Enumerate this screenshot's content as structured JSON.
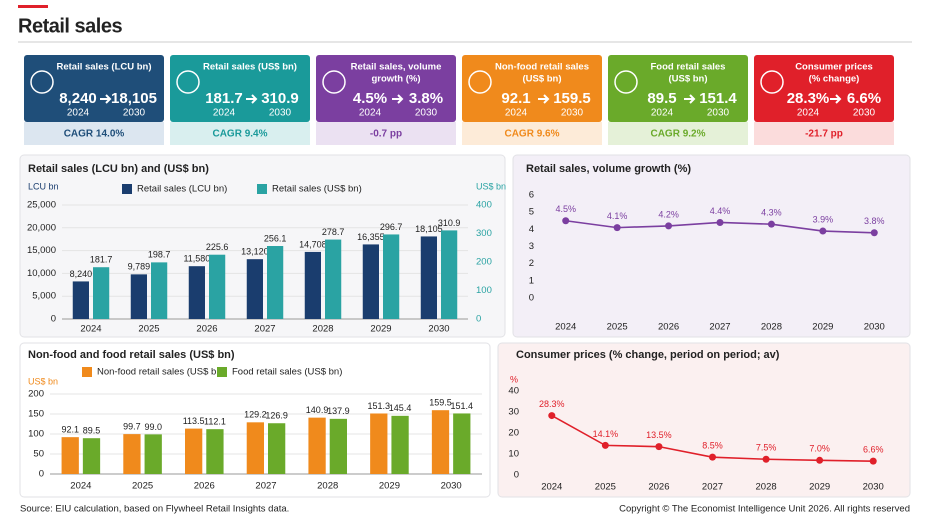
{
  "header": {
    "title": "Retail sales"
  },
  "cards": [
    {
      "title": [
        "Retail sales (LCU bn)"
      ],
      "start": "8,240",
      "end": "18,105",
      "start_year": "2024",
      "end_year": "2030",
      "footer": "CAGR 14.0%",
      "color": "#1f4e79",
      "band": "#dce6f0"
    },
    {
      "title": [
        "Retail sales (US$ bn)"
      ],
      "start": "181.7",
      "end": "310.9",
      "start_year": "2024",
      "end_year": "2030",
      "footer": "CAGR 9.4%",
      "color": "#1a9a9a",
      "band": "#d9efef"
    },
    {
      "title": [
        "Retail sales, volume",
        "growth (%)"
      ],
      "start": "4.5%",
      "end": "3.8%",
      "start_year": "2024",
      "end_year": "2030",
      "footer": "-0.7 pp",
      "color": "#7b3fa0",
      "band": "#ebe1f2"
    },
    {
      "title": [
        "Non-food retail sales",
        "(US$ bn)"
      ],
      "start": "92.1",
      "end": "159.5",
      "start_year": "2024",
      "end_year": "2030",
      "footer": "CAGR 9.6%",
      "color": "#f08a1c",
      "band": "#fdebd8"
    },
    {
      "title": [
        "Food retail sales",
        "(US$ bn)"
      ],
      "start": "89.5",
      "end": "151.4",
      "start_year": "2024",
      "end_year": "2030",
      "footer": "CAGR 9.2%",
      "color": "#6aaa2a",
      "band": "#e5f1d8"
    },
    {
      "title": [
        "Consumer prices",
        "(% change)"
      ],
      "start": "28.3%",
      "end": "6.6%",
      "start_year": "2024",
      "end_year": "2030",
      "footer": "-21.7 pp",
      "color": "#e0202a",
      "band": "#fbdcdc"
    }
  ],
  "chart_data": [
    {
      "type": "bar",
      "title": "Retail sales (LCU bn) and (US$ bn)",
      "y_label": "LCU bn",
      "y2_label": "US$ bn",
      "categories": [
        "2024",
        "2025",
        "2026",
        "2027",
        "2028",
        "2029",
        "2030"
      ],
      "series": [
        {
          "name": "Retail sales (LCU bn)",
          "color": "#1a3d6e",
          "values": [
            8240,
            9789,
            11580,
            13120,
            14708,
            16355,
            18105
          ],
          "value_labels": [
            "8,240",
            "9,789",
            "11,580",
            "13,120",
            "14,708",
            "16,355",
            "18,105"
          ]
        },
        {
          "name": "Retail sales (US$ bn)",
          "color": "#2aa3a3",
          "axis": "y2",
          "values": [
            181.7,
            198.7,
            225.6,
            256.1,
            278.7,
            296.7,
            310.9
          ]
        }
      ],
      "ylim": [
        0,
        25000
      ],
      "yticks": [
        0,
        {
          "value": 5000,
          "label": "5,000"
        },
        {
          "value": 10000,
          "label": "10,000"
        },
        {
          "value": 15000,
          "label": "15,000"
        },
        {
          "value": 20000,
          "label": "20,000"
        },
        {
          "value": 25000,
          "label": "25,000"
        }
      ],
      "y2lim": [
        0,
        400
      ],
      "y2ticks": [
        0,
        100,
        200,
        300,
        400
      ],
      "grid": true,
      "legend": "top"
    },
    {
      "type": "line",
      "title": "Retail sales, volume growth (%)",
      "color": "#7b3fa0",
      "categories": [
        "2024",
        "2025",
        "2026",
        "2027",
        "2028",
        "2029",
        "2030"
      ],
      "values": [
        4.5,
        4.1,
        4.2,
        4.4,
        4.3,
        3.9,
        3.8
      ],
      "value_labels": [
        "4.5%",
        "4.1%",
        "4.2%",
        "4.4%",
        "4.3%",
        "3.9%",
        "3.8%"
      ],
      "ylim": [
        0,
        6
      ],
      "yticks": [
        0,
        1,
        2,
        3,
        4,
        5,
        6
      ],
      "grid": false
    },
    {
      "type": "bar",
      "title": "Non-food and food retail sales (US$ bn)",
      "y_label": "US$ bn",
      "categories": [
        "2024",
        "2025",
        "2026",
        "2027",
        "2028",
        "2029",
        "2030"
      ],
      "series": [
        {
          "name": "Non-food retail sales (US$ bn)",
          "color": "#f08a1c",
          "values": [
            92.1,
            99.7,
            113.5,
            129.2,
            140.9,
            151.3,
            159.5
          ]
        },
        {
          "name": "Food retail sales (US$ bn)",
          "color": "#6aaa2a",
          "values": [
            89.5,
            99.0,
            112.1,
            126.9,
            137.9,
            145.4,
            151.4
          ],
          "value_labels": [
            "89.5",
            "99.0",
            "112.1",
            "126.9",
            "137.9",
            "145.4",
            "151.4"
          ]
        }
      ],
      "ylim": [
        0,
        200
      ],
      "yticks": [
        0,
        50,
        100,
        150,
        200
      ],
      "grid": true,
      "legend": "top"
    },
    {
      "type": "line",
      "title": "Consumer prices (% change, period on period; av)",
      "y_label": "%",
      "color": "#e0202a",
      "categories": [
        "2024",
        "2025",
        "2026",
        "2027",
        "2028",
        "2029",
        "2030"
      ],
      "values": [
        28.3,
        14.1,
        13.5,
        8.5,
        7.5,
        7.0,
        6.6
      ],
      "value_labels": [
        "28.3%",
        "14.1%",
        "13.5%",
        "8.5%",
        "7.5%",
        "7.0%",
        "6.6%"
      ],
      "ylim": [
        0,
        40
      ],
      "yticks": [
        0,
        10,
        20,
        30,
        40
      ],
      "grid": false
    }
  ],
  "footer": {
    "source": "Source: EIU calculation, based on Flywheel Retail Insights data.",
    "copyright": "Copyright © The Economist Intelligence Unit 2026. All rights reserved"
  }
}
